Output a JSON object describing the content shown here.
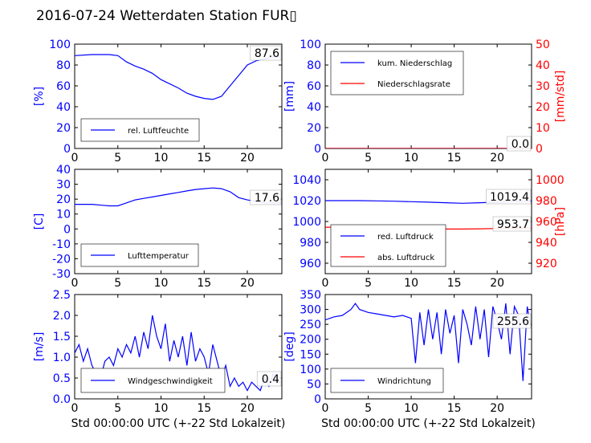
{
  "title": "2016-07-24 Wetterdaten Station FUR▯",
  "colors": {
    "blue": "#0000ff",
    "red": "#ff0000",
    "black": "#000000"
  },
  "chart_data": [
    {
      "id": "humidity",
      "type": "line",
      "ylabel": "[%]",
      "ylim": [
        0,
        100
      ],
      "yticks": [
        0,
        20,
        40,
        60,
        80,
        100
      ],
      "xlim": [
        0,
        24
      ],
      "xticks": [
        0,
        5,
        10,
        15,
        20
      ],
      "grid": false,
      "legend_placement": "lower-left",
      "series": [
        {
          "name": "rel. Luftfeuchte",
          "color": "#0000ff",
          "x": [
            0,
            2,
            4,
            5,
            6,
            7,
            8,
            9,
            10,
            11,
            12,
            13,
            14,
            15,
            16,
            17,
            18,
            19,
            20,
            21,
            22,
            23,
            23.8
          ],
          "y": [
            89,
            90,
            90,
            89,
            83,
            79,
            76,
            72,
            66,
            62,
            58,
            53,
            50,
            48,
            47,
            50,
            60,
            70,
            80,
            84,
            86,
            88,
            87.6
          ]
        }
      ],
      "annotation": "87.6"
    },
    {
      "id": "precipitation",
      "type": "line",
      "ylabel": "[mm]",
      "ylim": [
        0,
        100
      ],
      "yticks": [
        0,
        20,
        40,
        60,
        80,
        100
      ],
      "y2label": "[mm/std]",
      "y2lim": [
        0,
        50
      ],
      "y2ticks": [
        0,
        10,
        20,
        30,
        40,
        50
      ],
      "xlim": [
        0,
        24
      ],
      "xticks": [
        0,
        5,
        10,
        15,
        20
      ],
      "grid": false,
      "legend_placement": "upper-left",
      "series": [
        {
          "name": "kum. Niederschlag",
          "color": "#0000ff",
          "axis": "left",
          "x": [
            0,
            24
          ],
          "y": [
            0,
            0
          ]
        },
        {
          "name": "Niederschlagsrate",
          "color": "#ff0000",
          "axis": "right",
          "x": [
            0,
            24
          ],
          "y": [
            0,
            0
          ]
        }
      ],
      "annotation": "0.0"
    },
    {
      "id": "temperature",
      "type": "line",
      "ylabel": "[C]",
      "ylim": [
        -30,
        40
      ],
      "yticks": [
        -30,
        -20,
        -10,
        0,
        10,
        20,
        30,
        40
      ],
      "xlim": [
        0,
        24
      ],
      "xticks": [
        0,
        5,
        10,
        15,
        20
      ],
      "grid": false,
      "legend_placement": "lower-left",
      "series": [
        {
          "name": "Lufttemperatur",
          "color": "#0000ff",
          "x": [
            0,
            2,
            4,
            5,
            6,
            7,
            8,
            9,
            10,
            11,
            12,
            13,
            14,
            15,
            16,
            17,
            18,
            19,
            20,
            21,
            22,
            23,
            23.8
          ],
          "y": [
            16.5,
            16.5,
            15.5,
            15.5,
            17.5,
            19.5,
            20.5,
            21.5,
            22.5,
            23.5,
            24.5,
            25.5,
            26.5,
            27,
            27.5,
            27,
            25,
            21,
            19.5,
            18.5,
            17.5,
            17.5,
            17.6
          ]
        }
      ],
      "annotation": "17.6"
    },
    {
      "id": "pressure",
      "type": "line",
      "ylim": [
        950,
        1050
      ],
      "yticks": [
        960,
        980,
        1000,
        1020,
        1040
      ],
      "y2label": "[hPa]",
      "y2lim": [
        910,
        1010
      ],
      "y2ticks": [
        920,
        940,
        960,
        980,
        1000
      ],
      "xlim": [
        0,
        24
      ],
      "xticks": [
        0,
        5,
        10,
        15,
        20
      ],
      "grid": false,
      "legend_placement": "lower-left",
      "series": [
        {
          "name": "red. Luftdruck",
          "color": "#0000ff",
          "axis": "left",
          "x": [
            0,
            2,
            4,
            6,
            8,
            10,
            12,
            14,
            16,
            18,
            20,
            22,
            24
          ],
          "y": [
            1020,
            1020,
            1020,
            1019.8,
            1019.5,
            1019,
            1018.5,
            1018,
            1017.5,
            1018,
            1018.5,
            1019,
            1019.4
          ]
        },
        {
          "name": "abs. Luftdruck",
          "color": "#ff0000",
          "axis": "right",
          "x": [
            0,
            2,
            4,
            6,
            8,
            10,
            12,
            14,
            16,
            18,
            20,
            22,
            24
          ],
          "y": [
            954.5,
            954.5,
            954.3,
            954,
            953.7,
            953.3,
            953,
            952.8,
            952.8,
            953,
            953.3,
            953.5,
            953.7
          ]
        }
      ],
      "annotation_left": "1019.4",
      "annotation_right": "953.7"
    },
    {
      "id": "wind_speed",
      "type": "line",
      "ylabel": "[m/s]",
      "ylim": [
        0,
        2.5
      ],
      "yticks": [
        0.0,
        0.5,
        1.0,
        1.5,
        2.0,
        2.5
      ],
      "xlim": [
        0,
        24
      ],
      "xticks": [
        0,
        5,
        10,
        15,
        20
      ],
      "xlabel": "Std 00:00:00 UTC (+-22 Std Lokalzeit)",
      "grid": false,
      "legend_placement": "lower-left",
      "series": [
        {
          "name": "Windgeschwindigkeit",
          "color": "#0000ff",
          "x": [
            0,
            0.5,
            1,
            1.5,
            2,
            2.5,
            3,
            3.5,
            4,
            4.5,
            5,
            5.5,
            6,
            6.5,
            7,
            7.5,
            8,
            8.5,
            9,
            9.5,
            10,
            10.5,
            11,
            11.5,
            12,
            12.5,
            13,
            13.5,
            14,
            14.5,
            15,
            15.5,
            16,
            16.5,
            17,
            17.5,
            18,
            18.5,
            19,
            19.5,
            20,
            20.5,
            21,
            21.5,
            22,
            22.5,
            23,
            23.5,
            23.8
          ],
          "y": [
            1.1,
            1.3,
            0.9,
            1.2,
            0.8,
            0.6,
            0.5,
            0.9,
            1.0,
            0.8,
            1.2,
            1.0,
            1.3,
            1.1,
            1.5,
            1.0,
            1.6,
            1.2,
            2.0,
            1.5,
            1.2,
            1.8,
            0.9,
            1.4,
            1.0,
            1.5,
            0.8,
            1.6,
            0.9,
            1.2,
            1.0,
            0.6,
            1.3,
            0.9,
            0.5,
            0.8,
            0.3,
            0.5,
            0.3,
            0.4,
            0.2,
            0.4,
            0.3,
            0.2,
            0.5,
            0.3,
            0.6,
            0.4,
            0.4
          ]
        }
      ],
      "annotation": "0.4"
    },
    {
      "id": "wind_direction",
      "type": "line",
      "ylabel": "[deg]",
      "ylim": [
        0,
        350
      ],
      "yticks": [
        0,
        50,
        100,
        150,
        200,
        250,
        300,
        350
      ],
      "xlim": [
        0,
        24
      ],
      "xticks": [
        0,
        5,
        10,
        15,
        20
      ],
      "xlabel": "Std 00:00:00 UTC (+-22 Std Lokalzeit)",
      "grid": false,
      "legend_placement": "lower-left",
      "series": [
        {
          "name": "Windrichtung",
          "color": "#0000ff",
          "x": [
            0,
            1,
            2,
            3,
            3.5,
            4,
            5,
            6,
            7,
            8,
            9,
            10,
            10.5,
            11,
            11.5,
            12,
            12.5,
            13,
            13.5,
            14,
            14.5,
            15,
            15.5,
            16,
            16.5,
            17,
            17.5,
            18,
            18.5,
            19,
            19.5,
            20,
            20.5,
            21,
            21.5,
            22,
            22.5,
            23,
            23.5,
            23.8
          ],
          "y": [
            265,
            275,
            280,
            300,
            320,
            300,
            290,
            285,
            280,
            275,
            280,
            270,
            120,
            290,
            180,
            300,
            200,
            290,
            150,
            300,
            220,
            280,
            120,
            300,
            250,
            180,
            310,
            200,
            300,
            140,
            310,
            260,
            200,
            320,
            150,
            310,
            280,
            60,
            310,
            255.6
          ]
        }
      ],
      "annotation": "255.6"
    }
  ]
}
